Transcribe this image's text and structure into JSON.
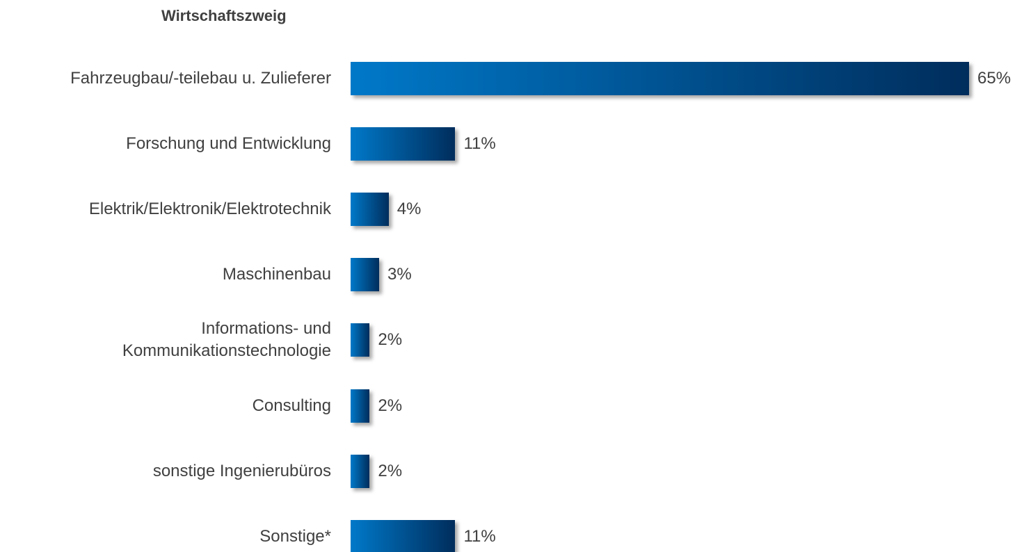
{
  "chart_data": {
    "type": "bar",
    "orientation": "horizontal",
    "title": "Wirtschaftszweig",
    "categories": [
      "Fahrzeugbau/-teilebau u. Zulieferer",
      "Forschung und Entwicklung",
      "Elektrik/Elektronik/Elektrotechnik",
      "Maschinenbau",
      "Informations- und\nKommunikationstechnologie",
      "Consulting",
      "sonstige Ingenierubüros",
      "Sonstige*"
    ],
    "values": [
      65,
      11,
      4,
      3,
      2,
      2,
      2,
      11
    ],
    "value_labels": [
      "65%",
      "11%",
      "4%",
      "3%",
      "2%",
      "2%",
      "2%",
      "11%"
    ],
    "gradient": [
      "#0079c9",
      "#002d5c"
    ]
  }
}
